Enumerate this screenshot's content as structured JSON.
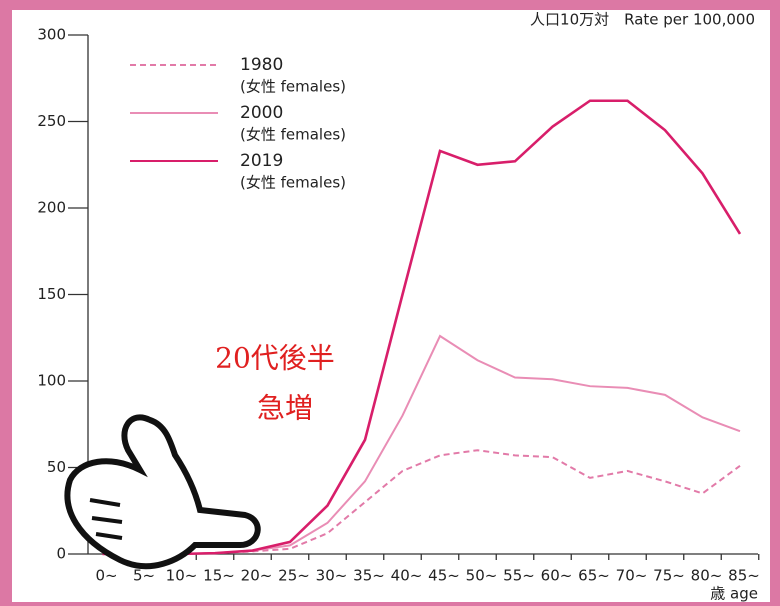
{
  "chart_data": {
    "type": "line",
    "title": "人口10万対　Rate per 100,000",
    "x_label": "歳 age",
    "categories": [
      "0~",
      "5~",
      "10~",
      "15~",
      "20~",
      "25~",
      "30~",
      "35~",
      "40~",
      "45~",
      "50~",
      "55~",
      "60~",
      "65~",
      "70~",
      "75~",
      "80~",
      "85~"
    ],
    "series": [
      {
        "name": "1980",
        "note": "(女性 females)",
        "color": "#e27aa8",
        "dashed": true,
        "values": [
          0,
          0,
          0,
          0.5,
          1.5,
          3,
          12,
          30,
          48,
          57,
          60,
          57,
          56,
          44,
          48,
          42,
          35,
          51
        ]
      },
      {
        "name": "2000",
        "note": "(女性 females)",
        "color": "#e98db5",
        "dashed": false,
        "values": [
          0,
          0,
          0,
          0.5,
          2,
          5,
          18,
          42,
          80,
          126,
          112,
          102,
          101,
          97,
          96,
          92,
          79,
          71
        ]
      },
      {
        "name": "2019",
        "note": "(女性 females)",
        "color": "#d81e6a",
        "dashed": false,
        "values": [
          0,
          0,
          0,
          0.5,
          2,
          7,
          28,
          66,
          150,
          233,
          225,
          227,
          247,
          262,
          262,
          245,
          220,
          185
        ]
      }
    ],
    "annotations": [
      "20代後半",
      "急増"
    ],
    "ylim": [
      0,
      300
    ],
    "yticks": [
      0,
      50,
      100,
      150,
      200,
      250,
      300
    ]
  }
}
